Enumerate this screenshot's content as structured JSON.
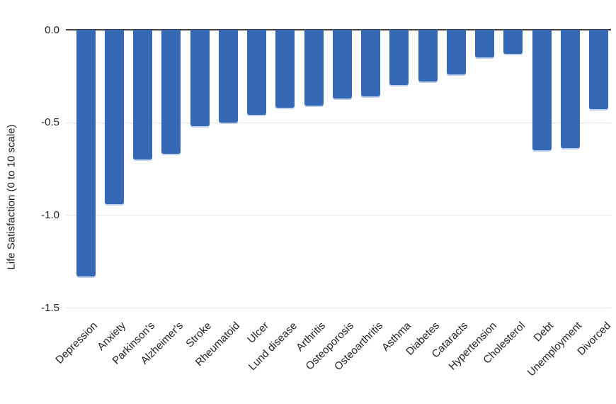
{
  "chart_data": {
    "type": "bar",
    "title": "",
    "xlabel": "",
    "ylabel": "Life Satisfaction (0 to 10 scale)",
    "categories": [
      "Depression",
      "Anxiety",
      "Parkinson's",
      "Alzheimer's",
      "Stroke",
      "Rheumatoid",
      "Ulcer",
      "Lund disease",
      "Arthritis",
      "Osteoporosis",
      "Osteoarthritis",
      "Asthma",
      "Diabetes",
      "Cataracts",
      "Hypertension",
      "Cholesterol",
      "Debt",
      "Unemployment",
      "Divorced"
    ],
    "values": [
      -1.33,
      -0.94,
      -0.7,
      -0.67,
      -0.52,
      -0.5,
      -0.46,
      -0.42,
      -0.41,
      -0.37,
      -0.36,
      -0.3,
      -0.28,
      -0.24,
      -0.15,
      -0.13,
      -0.65,
      -0.64,
      -0.43
    ],
    "ylim": [
      -1.5,
      0
    ],
    "ytick_labels": [
      "0.0",
      "-0.5",
      "-1.0",
      "-1.5"
    ],
    "ytick_values": [
      0,
      -0.5,
      -1.0,
      -1.5
    ],
    "grid": true,
    "legend": "none",
    "colors": {
      "bar": "#3568b5",
      "bar_edge": "#c3d2ec",
      "zero_axis_line": "#424242",
      "gridline": "#e3e3e3",
      "text": "#212121",
      "background": "#ffffff"
    }
  }
}
